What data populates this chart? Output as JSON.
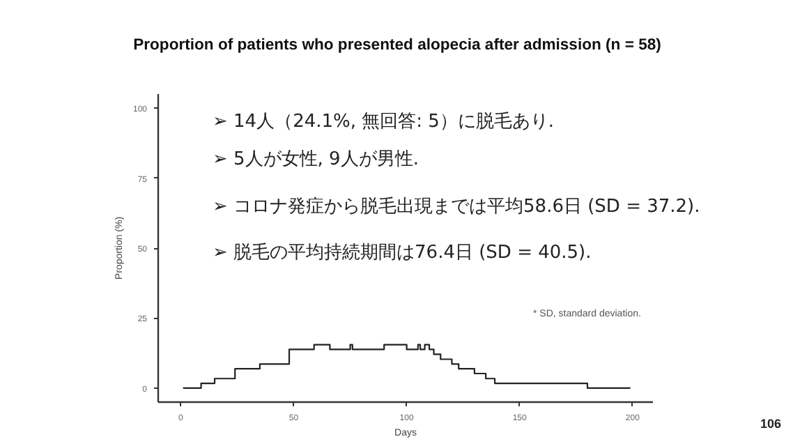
{
  "chart_data": {
    "type": "step",
    "title": "Proportion of patients who presented alopecia after admission (n = 58)",
    "xlabel": "Days",
    "ylabel": "Proportion (%)",
    "x": [
      1,
      9,
      15,
      24,
      35,
      48,
      59,
      66,
      75,
      76,
      90,
      100,
      105,
      106,
      108,
      110,
      112,
      115,
      120,
      123,
      130,
      135,
      139,
      180,
      199
    ],
    "series": [
      {
        "color": "#222222",
        "values": [
          0,
          1.7,
          3.4,
          6.9,
          8.6,
          13.8,
          15.5,
          13.8,
          15.5,
          13.8,
          15.5,
          13.8,
          15.5,
          13.8,
          15.5,
          13.8,
          12.1,
          10.3,
          8.6,
          6.9,
          5.2,
          3.4,
          1.7,
          0,
          0
        ]
      }
    ],
    "xlim": [
      -10,
      209
    ],
    "ylim": [
      -5,
      105
    ],
    "xticks": [
      0,
      50,
      100,
      150,
      200
    ],
    "yticks": [
      0,
      25,
      50,
      75,
      100
    ],
    "grid": false,
    "annotations": [
      "➢ 14人（24.1%, 無回答: 5）に脱毛あり.",
      "➢ 5人が女性, 9人が男性.",
      "➢ コロナ発症から脱毛出現までは平均58.6日 (SD = 37.2).",
      "➢ 脱毛の平均持続期間は76.4日 (SD = 40.5).",
      "* SD, standard deviation.",
      "106"
    ]
  }
}
